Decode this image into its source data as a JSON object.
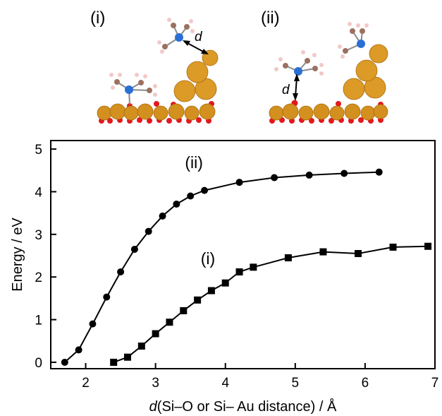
{
  "insets": [
    {
      "label": "(i)",
      "distance_label": "d"
    },
    {
      "label": "(ii)",
      "distance_label": "d"
    }
  ],
  "chart_data": {
    "type": "line",
    "xlabel": "d(Si–O or Si– Au distance) / Å",
    "ylabel": "Energy / eV",
    "xlim": [
      1.5,
      7.0
    ],
    "ylim": [
      -0.15,
      5.2
    ],
    "x_ticks": [
      2,
      3,
      4,
      5,
      6,
      7
    ],
    "y_ticks": [
      0,
      1,
      2,
      3,
      4,
      5
    ],
    "grid": false,
    "legend": "none",
    "series": [
      {
        "name": "(ii)",
        "marker": "circle",
        "color": "#000000",
        "x": [
          1.7,
          1.9,
          2.1,
          2.3,
          2.5,
          2.7,
          2.9,
          3.1,
          3.3,
          3.5,
          3.7,
          4.2,
          4.7,
          5.2,
          5.7,
          6.2
        ],
        "y": [
          0.0,
          0.29,
          0.9,
          1.53,
          2.12,
          2.65,
          3.07,
          3.43,
          3.71,
          3.9,
          4.03,
          4.22,
          4.33,
          4.39,
          4.43,
          4.46
        ]
      },
      {
        "name": "(i)",
        "marker": "square",
        "color": "#000000",
        "x": [
          2.4,
          2.6,
          2.8,
          3.0,
          3.2,
          3.4,
          3.6,
          3.8,
          4.0,
          4.2,
          4.4,
          4.9,
          5.4,
          5.9,
          6.4,
          6.9
        ],
        "y": [
          0.0,
          0.12,
          0.38,
          0.67,
          0.94,
          1.21,
          1.46,
          1.68,
          1.86,
          2.12,
          2.23,
          2.45,
          2.59,
          2.55,
          2.7,
          2.72
        ]
      }
    ]
  }
}
